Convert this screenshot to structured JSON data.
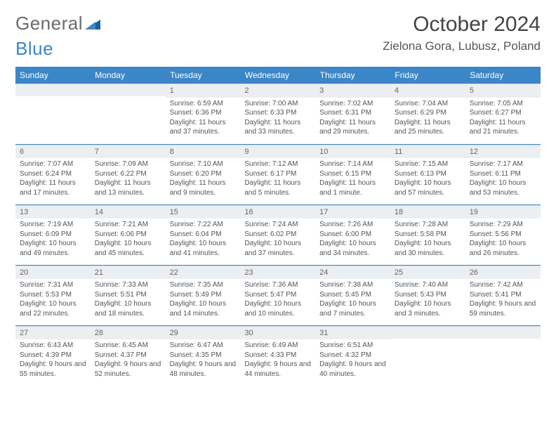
{
  "brand": {
    "part1": "General",
    "part2": "Blue"
  },
  "title": "October 2024",
  "location": "Zielona Gora, Lubusz, Poland",
  "colors": {
    "header_bg": "#3b86c6",
    "band_bg": "#eceff2",
    "rule": "#3b86c6",
    "text": "#555555",
    "title_text": "#444444"
  },
  "typography": {
    "title_fontsize": 30,
    "location_fontsize": 17,
    "th_fontsize": 12,
    "cell_fontsize": 10
  },
  "daynames": [
    "Sunday",
    "Monday",
    "Tuesday",
    "Wednesday",
    "Thursday",
    "Friday",
    "Saturday"
  ],
  "weeks": [
    [
      {
        "day": "",
        "sunrise": "",
        "sunset": "",
        "daylight": ""
      },
      {
        "day": "",
        "sunrise": "",
        "sunset": "",
        "daylight": ""
      },
      {
        "day": "1",
        "sunrise": "Sunrise: 6:59 AM",
        "sunset": "Sunset: 6:36 PM",
        "daylight": "Daylight: 11 hours and 37 minutes."
      },
      {
        "day": "2",
        "sunrise": "Sunrise: 7:00 AM",
        "sunset": "Sunset: 6:33 PM",
        "daylight": "Daylight: 11 hours and 33 minutes."
      },
      {
        "day": "3",
        "sunrise": "Sunrise: 7:02 AM",
        "sunset": "Sunset: 6:31 PM",
        "daylight": "Daylight: 11 hours and 29 minutes."
      },
      {
        "day": "4",
        "sunrise": "Sunrise: 7:04 AM",
        "sunset": "Sunset: 6:29 PM",
        "daylight": "Daylight: 11 hours and 25 minutes."
      },
      {
        "day": "5",
        "sunrise": "Sunrise: 7:05 AM",
        "sunset": "Sunset: 6:27 PM",
        "daylight": "Daylight: 11 hours and 21 minutes."
      }
    ],
    [
      {
        "day": "6",
        "sunrise": "Sunrise: 7:07 AM",
        "sunset": "Sunset: 6:24 PM",
        "daylight": "Daylight: 11 hours and 17 minutes."
      },
      {
        "day": "7",
        "sunrise": "Sunrise: 7:09 AM",
        "sunset": "Sunset: 6:22 PM",
        "daylight": "Daylight: 11 hours and 13 minutes."
      },
      {
        "day": "8",
        "sunrise": "Sunrise: 7:10 AM",
        "sunset": "Sunset: 6:20 PM",
        "daylight": "Daylight: 11 hours and 9 minutes."
      },
      {
        "day": "9",
        "sunrise": "Sunrise: 7:12 AM",
        "sunset": "Sunset: 6:17 PM",
        "daylight": "Daylight: 11 hours and 5 minutes."
      },
      {
        "day": "10",
        "sunrise": "Sunrise: 7:14 AM",
        "sunset": "Sunset: 6:15 PM",
        "daylight": "Daylight: 11 hours and 1 minute."
      },
      {
        "day": "11",
        "sunrise": "Sunrise: 7:15 AM",
        "sunset": "Sunset: 6:13 PM",
        "daylight": "Daylight: 10 hours and 57 minutes."
      },
      {
        "day": "12",
        "sunrise": "Sunrise: 7:17 AM",
        "sunset": "Sunset: 6:11 PM",
        "daylight": "Daylight: 10 hours and 53 minutes."
      }
    ],
    [
      {
        "day": "13",
        "sunrise": "Sunrise: 7:19 AM",
        "sunset": "Sunset: 6:09 PM",
        "daylight": "Daylight: 10 hours and 49 minutes."
      },
      {
        "day": "14",
        "sunrise": "Sunrise: 7:21 AM",
        "sunset": "Sunset: 6:06 PM",
        "daylight": "Daylight: 10 hours and 45 minutes."
      },
      {
        "day": "15",
        "sunrise": "Sunrise: 7:22 AM",
        "sunset": "Sunset: 6:04 PM",
        "daylight": "Daylight: 10 hours and 41 minutes."
      },
      {
        "day": "16",
        "sunrise": "Sunrise: 7:24 AM",
        "sunset": "Sunset: 6:02 PM",
        "daylight": "Daylight: 10 hours and 37 minutes."
      },
      {
        "day": "17",
        "sunrise": "Sunrise: 7:26 AM",
        "sunset": "Sunset: 6:00 PM",
        "daylight": "Daylight: 10 hours and 34 minutes."
      },
      {
        "day": "18",
        "sunrise": "Sunrise: 7:28 AM",
        "sunset": "Sunset: 5:58 PM",
        "daylight": "Daylight: 10 hours and 30 minutes."
      },
      {
        "day": "19",
        "sunrise": "Sunrise: 7:29 AM",
        "sunset": "Sunset: 5:56 PM",
        "daylight": "Daylight: 10 hours and 26 minutes."
      }
    ],
    [
      {
        "day": "20",
        "sunrise": "Sunrise: 7:31 AM",
        "sunset": "Sunset: 5:53 PM",
        "daylight": "Daylight: 10 hours and 22 minutes."
      },
      {
        "day": "21",
        "sunrise": "Sunrise: 7:33 AM",
        "sunset": "Sunset: 5:51 PM",
        "daylight": "Daylight: 10 hours and 18 minutes."
      },
      {
        "day": "22",
        "sunrise": "Sunrise: 7:35 AM",
        "sunset": "Sunset: 5:49 PM",
        "daylight": "Daylight: 10 hours and 14 minutes."
      },
      {
        "day": "23",
        "sunrise": "Sunrise: 7:36 AM",
        "sunset": "Sunset: 5:47 PM",
        "daylight": "Daylight: 10 hours and 10 minutes."
      },
      {
        "day": "24",
        "sunrise": "Sunrise: 7:38 AM",
        "sunset": "Sunset: 5:45 PM",
        "daylight": "Daylight: 10 hours and 7 minutes."
      },
      {
        "day": "25",
        "sunrise": "Sunrise: 7:40 AM",
        "sunset": "Sunset: 5:43 PM",
        "daylight": "Daylight: 10 hours and 3 minutes."
      },
      {
        "day": "26",
        "sunrise": "Sunrise: 7:42 AM",
        "sunset": "Sunset: 5:41 PM",
        "daylight": "Daylight: 9 hours and 59 minutes."
      }
    ],
    [
      {
        "day": "27",
        "sunrise": "Sunrise: 6:43 AM",
        "sunset": "Sunset: 4:39 PM",
        "daylight": "Daylight: 9 hours and 55 minutes."
      },
      {
        "day": "28",
        "sunrise": "Sunrise: 6:45 AM",
        "sunset": "Sunset: 4:37 PM",
        "daylight": "Daylight: 9 hours and 52 minutes."
      },
      {
        "day": "29",
        "sunrise": "Sunrise: 6:47 AM",
        "sunset": "Sunset: 4:35 PM",
        "daylight": "Daylight: 9 hours and 48 minutes."
      },
      {
        "day": "30",
        "sunrise": "Sunrise: 6:49 AM",
        "sunset": "Sunset: 4:33 PM",
        "daylight": "Daylight: 9 hours and 44 minutes."
      },
      {
        "day": "31",
        "sunrise": "Sunrise: 6:51 AM",
        "sunset": "Sunset: 4:32 PM",
        "daylight": "Daylight: 9 hours and 40 minutes."
      },
      {
        "day": "",
        "sunrise": "",
        "sunset": "",
        "daylight": ""
      },
      {
        "day": "",
        "sunrise": "",
        "sunset": "",
        "daylight": ""
      }
    ]
  ]
}
